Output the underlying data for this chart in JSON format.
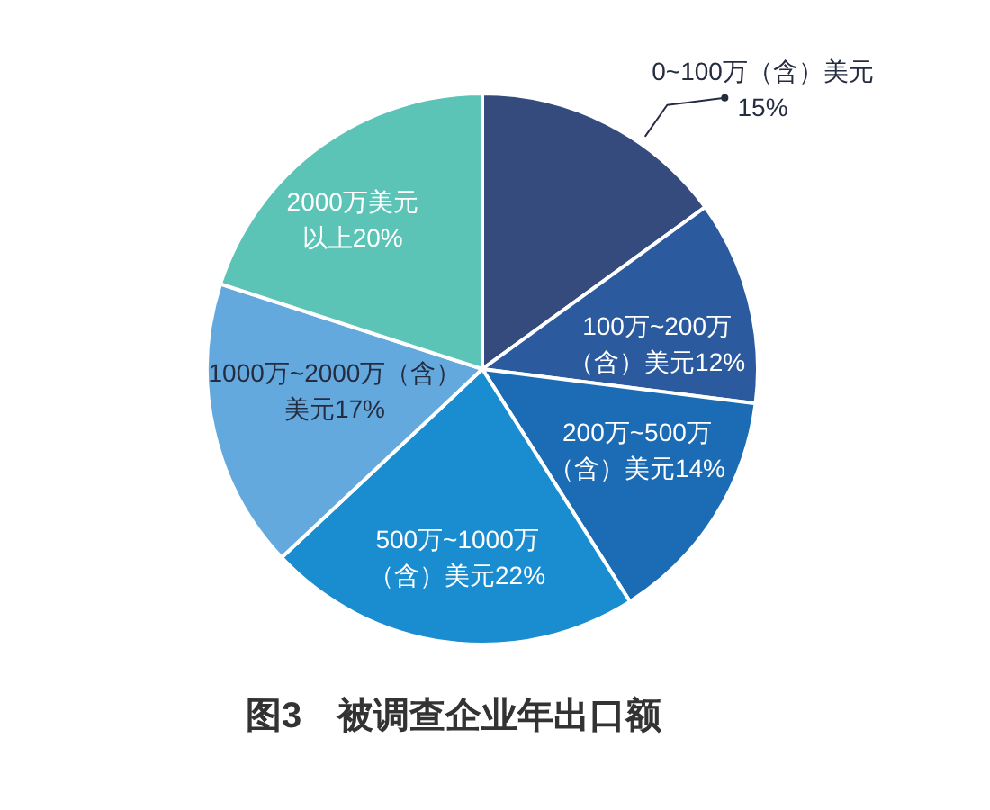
{
  "chart_data": {
    "type": "pie",
    "title": "图3　被调查企业年出口额",
    "categories": [
      "0~100万（含）美元",
      "100万~200万（含）美元",
      "200万~500万（含）美元",
      "500万~1000万（含）美元",
      "1000万~2000万（含）美元",
      "2000万美元以上"
    ],
    "values": [
      15,
      12,
      14,
      22,
      17,
      20
    ],
    "colors": [
      "#354a7d",
      "#2b5a9f",
      "#1c6cb5",
      "#1a8dd0",
      "#64a9de",
      "#5cc4b6"
    ],
    "value_labels": [
      "15%",
      "12%",
      "14%",
      "22%",
      "17%",
      "20%"
    ]
  }
}
